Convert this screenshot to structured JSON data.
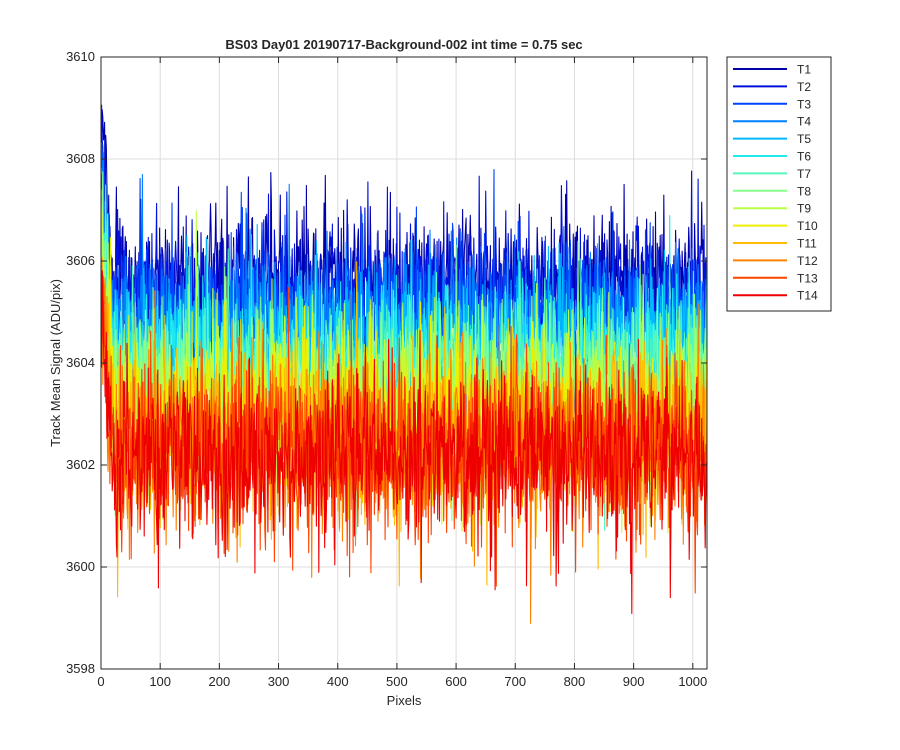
{
  "chart_data": {
    "type": "line",
    "title": "BS03 Day01 20190717-Background-002 int time = 0.75 sec",
    "xlabel": "Pixels",
    "ylabel": "Track Mean Signal (ADU/pix)",
    "xlim": [
      0,
      1024
    ],
    "ylim": [
      3598,
      3610
    ],
    "xticks": [
      0,
      100,
      200,
      300,
      400,
      500,
      600,
      700,
      800,
      900,
      1000
    ],
    "yticks": [
      3598,
      3600,
      3602,
      3604,
      3606,
      3608,
      3610
    ],
    "grid": true,
    "legend_position": "outside-top-right",
    "x_range": [
      1,
      1024
    ],
    "series": [
      {
        "name": "T1",
        "color": "#0000aa",
        "mean": 3605.6,
        "noise": 0.7
      },
      {
        "name": "T2",
        "color": "#0010dd",
        "mean": 3605.3,
        "noise": 0.7
      },
      {
        "name": "T3",
        "color": "#0044ff",
        "mean": 3605.0,
        "noise": 0.7
      },
      {
        "name": "T4",
        "color": "#0080ff",
        "mean": 3604.7,
        "noise": 0.7
      },
      {
        "name": "T5",
        "color": "#00b8ff",
        "mean": 3604.4,
        "noise": 0.7
      },
      {
        "name": "T6",
        "color": "#20e8ee",
        "mean": 3604.1,
        "noise": 0.7
      },
      {
        "name": "T7",
        "color": "#55f8bb",
        "mean": 3603.8,
        "noise": 0.75
      },
      {
        "name": "T8",
        "color": "#88ff88",
        "mean": 3603.5,
        "noise": 0.75
      },
      {
        "name": "T9",
        "color": "#bbff44",
        "mean": 3603.2,
        "noise": 0.8
      },
      {
        "name": "T10",
        "color": "#eeee00",
        "mean": 3602.9,
        "noise": 0.8
      },
      {
        "name": "T11",
        "color": "#ffbb00",
        "mean": 3602.6,
        "noise": 0.85
      },
      {
        "name": "T12",
        "color": "#ff8000",
        "mean": 3602.4,
        "noise": 0.85
      },
      {
        "name": "T13",
        "color": "#ff4400",
        "mean": 3602.3,
        "noise": 0.85
      },
      {
        "name": "T14",
        "color": "#ee0000",
        "mean": 3602.2,
        "noise": 0.85
      }
    ]
  }
}
